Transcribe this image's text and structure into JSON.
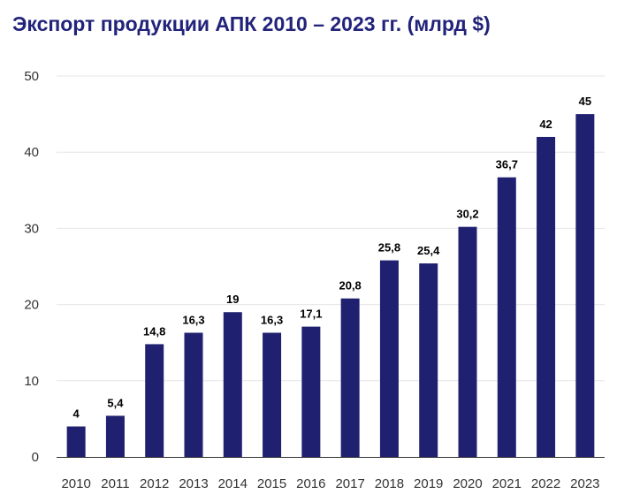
{
  "title": "Экспорт продукции АПК 2010 – 2023 гг. (млрд $)",
  "chart_data": {
    "type": "bar",
    "title": "Экспорт продукции АПК 2010 – 2023 гг. (млрд $)",
    "xlabel": "",
    "ylabel": "",
    "categories": [
      "2010",
      "2011",
      "2012",
      "2013",
      "2014",
      "2015",
      "2016",
      "2017",
      "2018",
      "2019",
      "2020",
      "2021",
      "2022",
      "2023"
    ],
    "values": [
      4,
      5.4,
      14.8,
      16.3,
      19,
      16.3,
      17.1,
      20.8,
      25.8,
      25.4,
      30.2,
      36.7,
      42,
      45
    ],
    "data_labels": [
      "4",
      "5,4",
      "14,8",
      "16,3",
      "19",
      "16,3",
      "17,1",
      "20,8",
      "25,8",
      "25,4",
      "30,2",
      "36,7",
      "42",
      "45"
    ],
    "ylim": [
      0,
      50
    ],
    "yticks": [
      0,
      10,
      20,
      30,
      40,
      50
    ],
    "ytick_labels": [
      "0",
      "10",
      "20",
      "30",
      "40",
      "50"
    ],
    "grid": true,
    "legend": "none",
    "colors": {
      "bar": "#1f2170",
      "title": "#22237a",
      "grid": "#e6e6e6",
      "axis": "#333333"
    }
  }
}
